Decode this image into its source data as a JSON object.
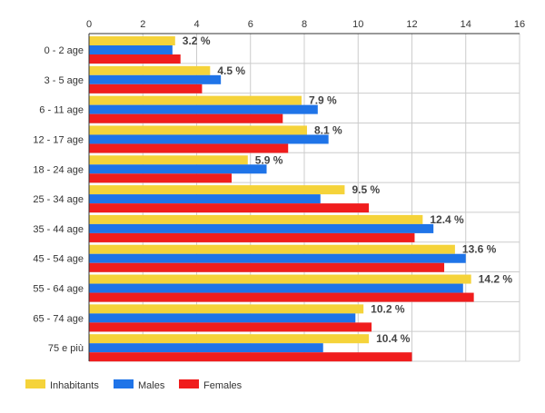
{
  "chart_data": {
    "type": "bar",
    "orientation": "horizontal",
    "categories": [
      "0 - 2 age",
      "3 - 5 age",
      "6 - 11 age",
      "12 - 17 age",
      "18 - 24 age",
      "25 - 34 age",
      "35 - 44 age",
      "45 - 54 age",
      "55 - 64 age",
      "65 - 74 age",
      "75 e più"
    ],
    "series": [
      {
        "name": "Inhabitants",
        "color": "#f5d33a",
        "values": [
          3.2,
          4.5,
          7.9,
          8.1,
          5.9,
          9.5,
          12.4,
          13.6,
          14.2,
          10.2,
          10.4
        ]
      },
      {
        "name": "Males",
        "color": "#1f74e8",
        "values": [
          3.1,
          4.9,
          8.5,
          8.9,
          6.6,
          8.6,
          12.8,
          14.0,
          13.9,
          9.9,
          8.7
        ]
      },
      {
        "name": "Females",
        "color": "#f01d1d",
        "values": [
          3.4,
          4.2,
          7.2,
          7.4,
          5.3,
          10.4,
          12.1,
          13.2,
          14.3,
          10.5,
          12.0
        ]
      }
    ],
    "data_labels": [
      "3.2 %",
      "4.5 %",
      "7.9 %",
      "8.1 %",
      "5.9 %",
      "9.5 %",
      "12.4 %",
      "13.6 %",
      "14.2 %",
      "10.2 %",
      "10.4 %"
    ],
    "xlim": [
      0,
      16
    ],
    "xticks": [
      "0",
      "2",
      "4",
      "6",
      "8",
      "10",
      "12",
      "14",
      "16"
    ],
    "x_axis_position": "top",
    "grid": true,
    "legend_position": "bottom-left",
    "title": "",
    "xlabel": "",
    "ylabel": ""
  }
}
